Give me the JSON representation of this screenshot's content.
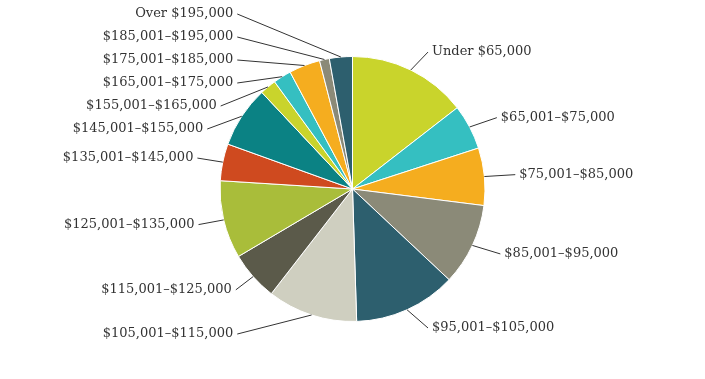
{
  "chart_data": {
    "type": "pie",
    "categories": [
      "Under $65,000",
      "$65,001–$75,000",
      "$75,001–$85,000",
      "$85,001–$95,000",
      "$95,001–$105,000",
      "$105,001–$115,000",
      "$115,001–$125,000",
      "$125,001–$135,000",
      "$135,001–$145,000",
      "$145,001–$155,000",
      "$155,001–$165,000",
      "$165,001–$175,000",
      "$175,001–$185,000",
      "$185,001–$195,000",
      "Over $195,000"
    ],
    "values": [
      14.5,
      5.5,
      7,
      10,
      12.5,
      11,
      6,
      9.5,
      4.5,
      7.5,
      2,
      2.2,
      3.8,
      1.2,
      2.8
    ],
    "colors": [
      "#c9d42c",
      "#35bfc1",
      "#f5ad1f",
      "#8b8a78",
      "#2d5f6e",
      "#cfcfc0",
      "#5b5a4a",
      "#a9bd3a",
      "#cf4a1f",
      "#0b8284",
      "#c9d42c",
      "#35bfc1",
      "#f5ad1f",
      "#8b8a78",
      "#2d5f6e"
    ],
    "legend": false
  }
}
